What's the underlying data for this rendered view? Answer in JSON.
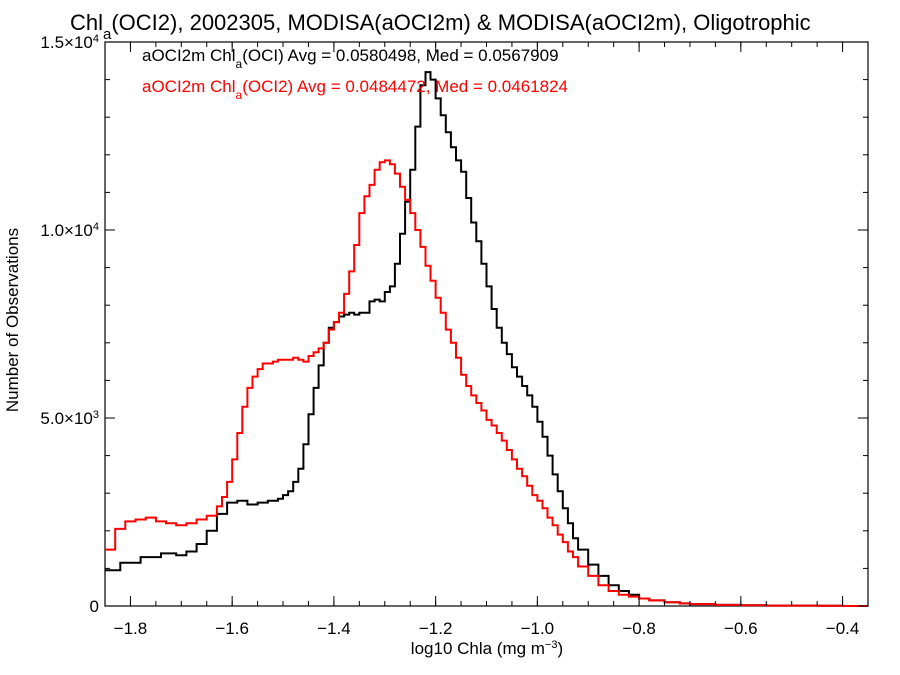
{
  "chart_data": {
    "type": "line",
    "title_parts": [
      "Chl",
      "a",
      "(OCI2), 2002305, MODISA(aOCI2m) & MODISA(aOCI2m), Oligotrophic"
    ],
    "xlabel_parts": [
      "log10 Chla (mg m",
      "−3",
      ")"
    ],
    "ylabel": "Number of Observations",
    "xlim": [
      -1.85,
      -0.35
    ],
    "ylim": [
      0,
      15000
    ],
    "x_ticks": [
      -1.8,
      -1.6,
      -1.4,
      -1.2,
      -1.0,
      -0.8,
      -0.6,
      -0.4
    ],
    "x_tick_labels": [
      "−1.8",
      "−1.6",
      "−1.4",
      "−1.2",
      "−1.0",
      "−0.8",
      "−0.6",
      "−0.4"
    ],
    "y_ticks": [
      {
        "value": 0,
        "mant": "0",
        "exp": ""
      },
      {
        "value": 5000,
        "mant": "5.0×10",
        "exp": "3"
      },
      {
        "value": 10000,
        "mant": "1.0×10",
        "exp": "4"
      },
      {
        "value": 15000,
        "mant": "1.5×10",
        "exp": "4"
      }
    ],
    "legend_placement": "top-left",
    "series": [
      {
        "label_parts": [
          "aOCI2m Chl",
          "a",
          "(OCI) Avg = 0.0580498, Med = 0.0567909"
        ],
        "color": "#000000",
        "x": [
          -1.85,
          -1.82,
          -1.78,
          -1.74,
          -1.71,
          -1.69,
          -1.67,
          -1.65,
          -1.63,
          -1.61,
          -1.59,
          -1.57,
          -1.55,
          -1.53,
          -1.51,
          -1.5,
          -1.49,
          -1.48,
          -1.47,
          -1.46,
          -1.45,
          -1.44,
          -1.43,
          -1.42,
          -1.41,
          -1.4,
          -1.39,
          -1.38,
          -1.37,
          -1.36,
          -1.35,
          -1.34,
          -1.33,
          -1.32,
          -1.31,
          -1.3,
          -1.29,
          -1.28,
          -1.27,
          -1.26,
          -1.25,
          -1.24,
          -1.23,
          -1.22,
          -1.21,
          -1.2,
          -1.19,
          -1.18,
          -1.17,
          -1.16,
          -1.15,
          -1.14,
          -1.13,
          -1.12,
          -1.11,
          -1.1,
          -1.09,
          -1.08,
          -1.07,
          -1.06,
          -1.05,
          -1.04,
          -1.03,
          -1.02,
          -1.01,
          -1.0,
          -0.99,
          -0.98,
          -0.97,
          -0.96,
          -0.95,
          -0.94,
          -0.93,
          -0.92,
          -0.9,
          -0.88,
          -0.86,
          -0.84,
          -0.82,
          -0.8,
          -0.78,
          -0.75,
          -0.72,
          -0.7,
          -0.65,
          -0.6,
          -0.55,
          -0.5,
          -0.45,
          -0.4,
          -0.35
        ],
        "values": [
          950,
          1150,
          1300,
          1400,
          1350,
          1450,
          1650,
          2000,
          2450,
          2750,
          2800,
          2700,
          2750,
          2800,
          2850,
          2950,
          3050,
          3300,
          3650,
          4300,
          5100,
          5800,
          6400,
          7000,
          7400,
          7550,
          7700,
          7750,
          7800,
          7750,
          7800,
          7800,
          8100,
          8150,
          8100,
          8350,
          8500,
          9100,
          9900,
          10750,
          11600,
          12750,
          13850,
          14200,
          14000,
          13500,
          13050,
          12600,
          12200,
          11850,
          11550,
          10850,
          10200,
          9700,
          9100,
          8500,
          7900,
          7400,
          7000,
          6700,
          6350,
          6100,
          5850,
          5600,
          5300,
          4900,
          4500,
          4000,
          3500,
          3050,
          2600,
          2200,
          1800,
          1500,
          1100,
          800,
          550,
          400,
          300,
          200,
          150,
          100,
          70,
          50,
          30,
          20,
          10,
          10,
          5,
          0,
          0
        ]
      },
      {
        "label_parts": [
          "aOCI2m Chl",
          "a",
          "(OCI2) Avg = 0.0484472, Med = 0.0461824"
        ],
        "color": "#ff0000",
        "x": [
          -1.85,
          -1.83,
          -1.81,
          -1.79,
          -1.77,
          -1.75,
          -1.73,
          -1.71,
          -1.69,
          -1.67,
          -1.65,
          -1.63,
          -1.62,
          -1.61,
          -1.6,
          -1.59,
          -1.58,
          -1.57,
          -1.56,
          -1.55,
          -1.54,
          -1.53,
          -1.52,
          -1.51,
          -1.5,
          -1.49,
          -1.48,
          -1.47,
          -1.46,
          -1.45,
          -1.44,
          -1.43,
          -1.42,
          -1.41,
          -1.4,
          -1.39,
          -1.38,
          -1.37,
          -1.36,
          -1.35,
          -1.34,
          -1.33,
          -1.32,
          -1.31,
          -1.3,
          -1.29,
          -1.28,
          -1.27,
          -1.26,
          -1.25,
          -1.24,
          -1.23,
          -1.22,
          -1.21,
          -1.2,
          -1.19,
          -1.18,
          -1.17,
          -1.16,
          -1.15,
          -1.14,
          -1.13,
          -1.12,
          -1.11,
          -1.1,
          -1.09,
          -1.08,
          -1.07,
          -1.06,
          -1.05,
          -1.04,
          -1.03,
          -1.02,
          -1.01,
          -1.0,
          -0.99,
          -0.98,
          -0.97,
          -0.96,
          -0.95,
          -0.94,
          -0.93,
          -0.92,
          -0.9,
          -0.88,
          -0.86,
          -0.84,
          -0.82,
          -0.8,
          -0.78,
          -0.75,
          -0.72,
          -0.7,
          -0.65,
          -0.6,
          -0.55,
          -0.5,
          -0.45,
          -0.4,
          -0.35
        ],
        "values": [
          1500,
          2050,
          2250,
          2300,
          2350,
          2250,
          2200,
          2150,
          2200,
          2300,
          2400,
          2650,
          2900,
          3300,
          3900,
          4600,
          5300,
          5800,
          6100,
          6300,
          6450,
          6450,
          6500,
          6550,
          6550,
          6550,
          6600,
          6550,
          6500,
          6650,
          6750,
          6850,
          7000,
          7350,
          7550,
          7800,
          8300,
          8900,
          9600,
          10450,
          10900,
          11200,
          11600,
          11800,
          11850,
          11750,
          11500,
          11150,
          10800,
          10450,
          10000,
          9550,
          9050,
          8650,
          8200,
          7800,
          7350,
          7000,
          6600,
          6150,
          5850,
          5600,
          5400,
          5200,
          4950,
          4800,
          4600,
          4400,
          4150,
          3900,
          3650,
          3450,
          3200,
          2950,
          2800,
          2600,
          2350,
          2150,
          1900,
          1700,
          1450,
          1300,
          1050,
          800,
          550,
          400,
          300,
          250,
          200,
          150,
          100,
          70,
          50,
          30,
          20,
          10,
          10,
          5,
          0,
          0
        ]
      }
    ]
  }
}
